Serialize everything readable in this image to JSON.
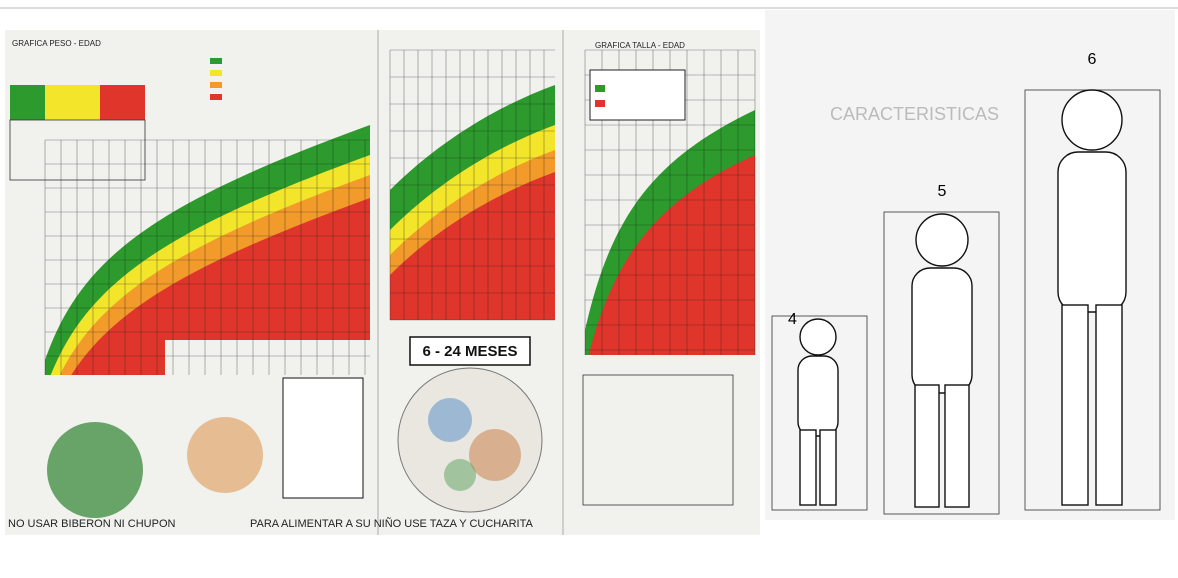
{
  "left_chart": {
    "title": "GRAFICA PESO - EDAD",
    "footer_left": "NO USAR BIBERON NI CHUPON",
    "footer_right": "PARA ALIMENTAR A SU NIÑO USE TAZA Y CUCHARITA"
  },
  "middle_chart": {
    "label": "6 - 24 MESES"
  },
  "right_chart": {
    "title": "GRAFICA TALLA - EDAD"
  },
  "figures": {
    "heading": "CARACTERISTICAS",
    "labels": [
      "4",
      "5",
      "6"
    ]
  }
}
